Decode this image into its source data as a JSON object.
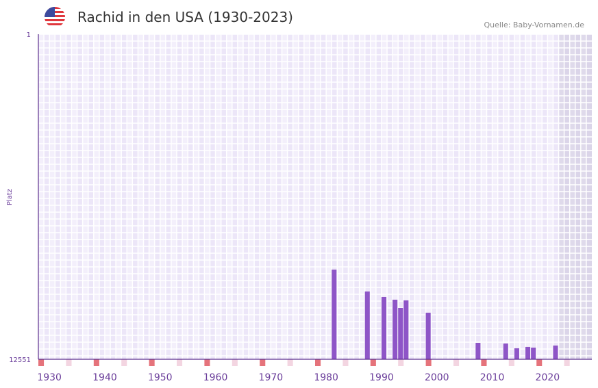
{
  "header": {
    "title": "Rachid in den USA (1930-2023)",
    "source": "Quelle: Baby-Vornamen.de",
    "flag_icon": "us-flag-icon"
  },
  "chart_data": {
    "type": "bar",
    "title": "Rachid in den USA (1930-2023)",
    "xlabel": "",
    "ylabel": "Platz",
    "ylim": [
      1,
      12551
    ],
    "y_inverted": true,
    "y_ticks": [
      "1",
      "12551"
    ],
    "x_ticks": [
      1930,
      1940,
      1950,
      1960,
      1970,
      1980,
      1990,
      2000,
      2010,
      2020
    ],
    "xlim": [
      1928,
      2028
    ],
    "shaded_from": 2022,
    "bar_color": "#8e55c7",
    "years": [
      1981,
      1987,
      1990,
      1992,
      1993,
      1994,
      1998,
      2007,
      2012,
      2014,
      2016,
      2017,
      2021
    ],
    "values": [
      9089,
      9934,
      10146,
      10251,
      10569,
      10278,
      10753,
      11916,
      11942,
      12127,
      12074,
      12101,
      12021
    ]
  }
}
